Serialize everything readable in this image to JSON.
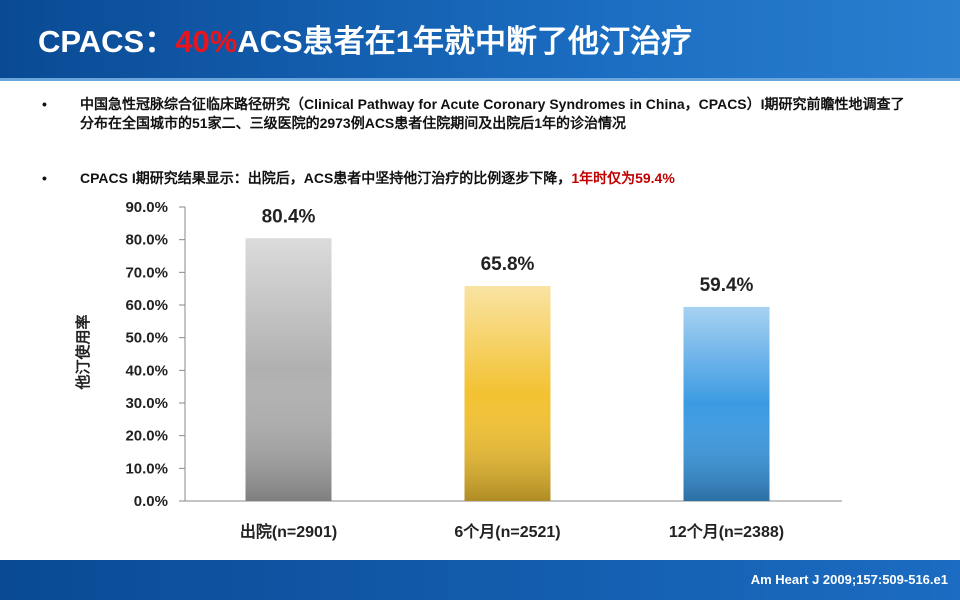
{
  "header": {
    "title_prefix": "CPACS：",
    "title_highlight": "40%",
    "title_suffix": "ACS患者在1年就中断了他汀治疗"
  },
  "bullets": [
    {
      "text": "中国急性冠脉综合征临床路径研究（Clinical Pathway for Acute Coronary Syndromes in China，CPACS）I期研究前瞻性地调查了分布在全国城市的51家二、三级医院的2973例ACS患者住院期间及出院后1年的诊治情况"
    },
    {
      "text": "CPACS I期研究结果显示：出院后，ACS患者中坚持他汀治疗的比例逐步下降，",
      "highlight": "1年时仅为59.4%"
    }
  ],
  "chart_data": {
    "type": "bar",
    "y_label": "他汀使用率",
    "categories": [
      "出院(n=2901)",
      "6个月(n=2521)",
      "12个月(n=2388)"
    ],
    "values": [
      80.4,
      65.8,
      59.4
    ],
    "value_labels": [
      "80.4%",
      "65.8%",
      "59.4%"
    ],
    "colors": [
      "#b0b0b0",
      "#f3c232",
      "#3b9ae2"
    ],
    "ylim": [
      0,
      90
    ],
    "yticks": [
      {
        "value": 0,
        "label": "0.0%"
      },
      {
        "value": 10,
        "label": "10.0%"
      },
      {
        "value": 20,
        "label": "20.0%"
      },
      {
        "value": 30,
        "label": "30.0%"
      },
      {
        "value": 40,
        "label": "40.0%"
      },
      {
        "value": 50,
        "label": "50.0%"
      },
      {
        "value": 60,
        "label": "60.0%"
      },
      {
        "value": 70,
        "label": "70.0%"
      },
      {
        "value": 80,
        "label": "80.0%"
      },
      {
        "value": 90,
        "label": "90.0%"
      }
    ],
    "grid": false
  },
  "footer": {
    "citation": "Am Heart J 2009;157:509-516.e1"
  }
}
